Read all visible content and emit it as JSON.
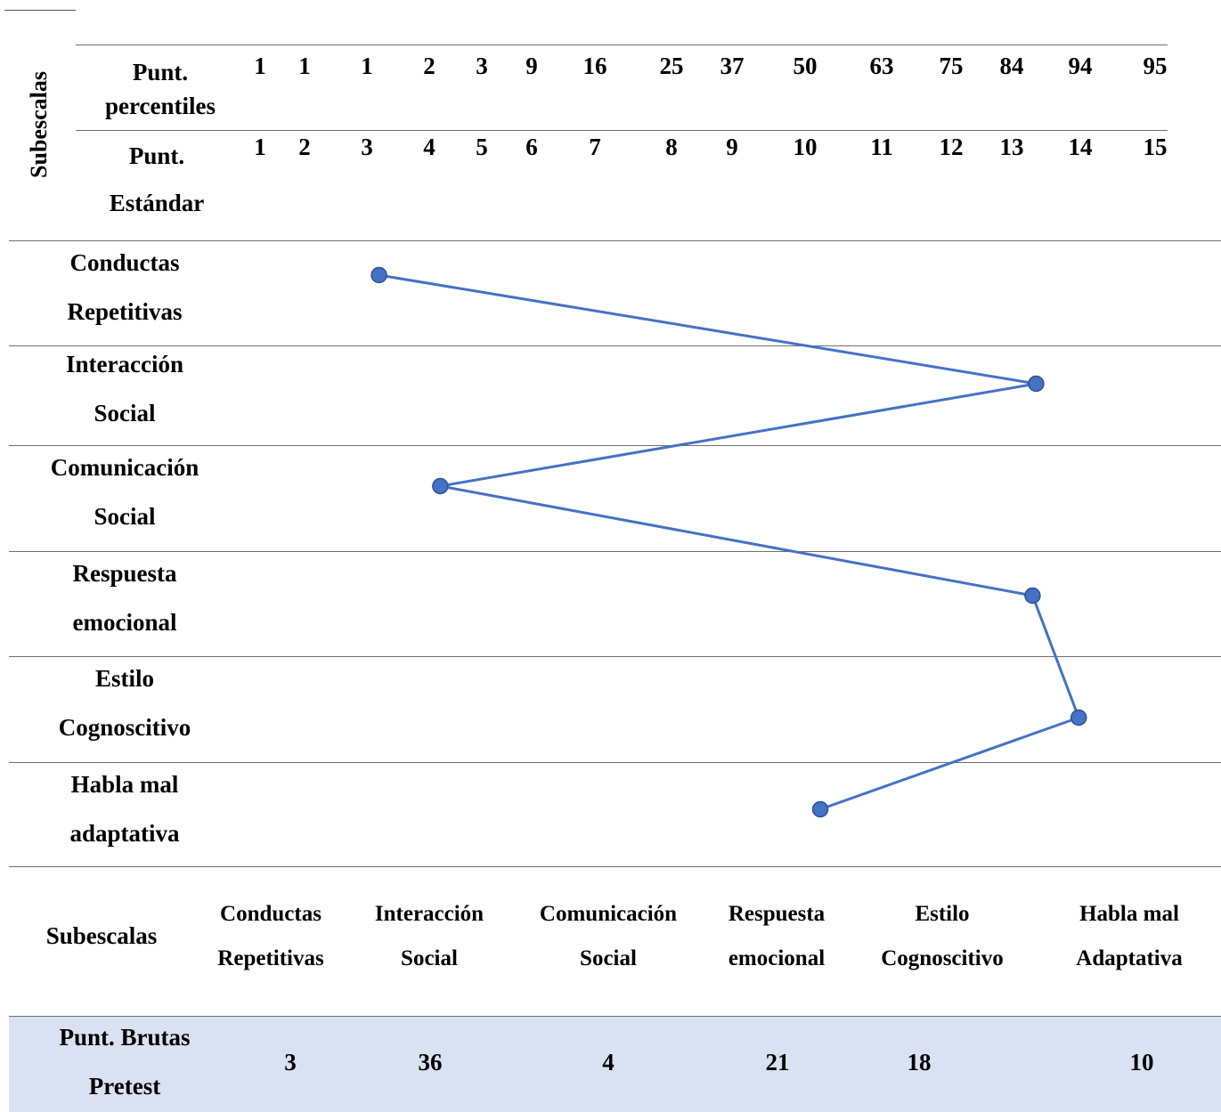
{
  "header": {
    "subescalas_label": "Subescalas",
    "percentiles_label": [
      "Punt.",
      "percentiles"
    ],
    "estandar_label": [
      "Punt.",
      "Estándar"
    ],
    "percentiles": [
      "1",
      "1",
      "1",
      "2",
      "3",
      "9",
      "16",
      "25",
      "37",
      "50",
      "63",
      "75",
      "84",
      "94",
      "95"
    ],
    "estandar": [
      "1",
      "2",
      "3",
      "4",
      "5",
      "6",
      "7",
      "8",
      "9",
      "10",
      "11",
      "12",
      "13",
      "14",
      "15"
    ]
  },
  "profile_rows": [
    [
      "Conductas",
      "Repetitivas"
    ],
    [
      "Interacción",
      "Social"
    ],
    [
      "Comunicación",
      "Social"
    ],
    [
      "Respuesta",
      "emocional"
    ],
    [
      "Estilo",
      "Cognoscitivo"
    ],
    [
      "Habla mal",
      "adaptativa"
    ]
  ],
  "chart_data": {
    "type": "line",
    "x": [
      "Conductas Repetitivas",
      "Interacción Social",
      "Comunicación Social",
      "Respuesta emocional",
      "Estilo Cognoscitivo",
      "Habla mal adaptativa"
    ],
    "values": [
      3,
      13,
      4,
      13,
      14,
      10
    ],
    "axis": "Punt. Estándar",
    "xlim": [
      1,
      15
    ],
    "color": "#4472c4"
  },
  "summary": {
    "label": "Subescalas",
    "columns": [
      [
        "Conductas",
        "Repetitivas"
      ],
      [
        "Interacción",
        "Social"
      ],
      [
        "Comunicación",
        "Social"
      ],
      [
        "Respuesta",
        "emocional"
      ],
      [
        "Estilo",
        "Cognoscitivo"
      ],
      [
        "Habla mal",
        "Adaptativa"
      ]
    ]
  },
  "pretest": {
    "label": [
      "Punt. Brutas",
      "Pretest"
    ],
    "values": [
      "3",
      "36",
      "4",
      "21",
      "18",
      "10"
    ],
    "band_color": "#d9e2f2"
  }
}
